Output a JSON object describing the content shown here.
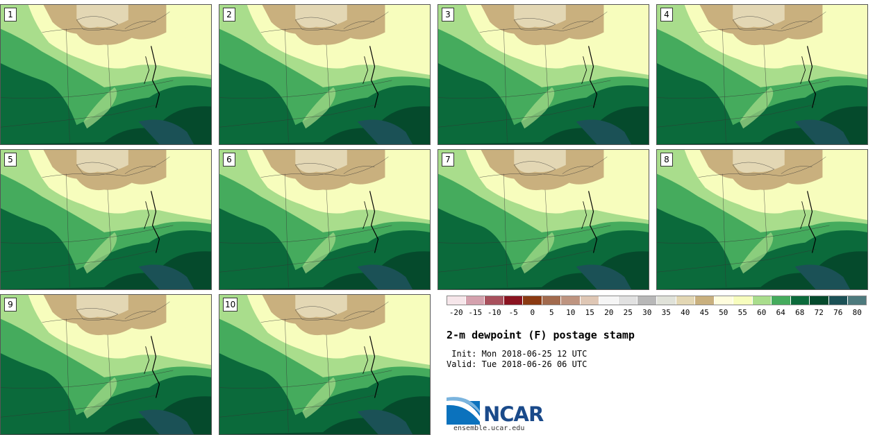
{
  "panels": [
    {
      "label": "1"
    },
    {
      "label": "2"
    },
    {
      "label": "3"
    },
    {
      "label": "4"
    },
    {
      "label": "5"
    },
    {
      "label": "6"
    },
    {
      "label": "7"
    },
    {
      "label": "8"
    },
    {
      "label": "9"
    },
    {
      "label": "10"
    }
  ],
  "colorbar": {
    "colors": [
      "#f6e6ea",
      "#d4a1ad",
      "#a8505c",
      "#8a1320",
      "#8b3a12",
      "#a26a4d",
      "#be9480",
      "#dfc7b5",
      "#f5f5f5",
      "#e1e1e1",
      "#b8b8b8",
      "#e0e2d9",
      "#e3d7b4",
      "#c9b07e",
      "#fffddd",
      "#f7fdbd",
      "#a9dd8c",
      "#45ab5d",
      "#0b6a3b",
      "#054a2c",
      "#1b5156",
      "#4d7a7d"
    ],
    "ticks": [
      "-20",
      "-15",
      "-10",
      "-5",
      "0",
      "5",
      "10",
      "15",
      "20",
      "25",
      "30",
      "35",
      "40",
      "45",
      "50",
      "55",
      "60",
      "64",
      "68",
      "72",
      "76",
      "80"
    ]
  },
  "title": "2-m dewpoint (F) postage stamp",
  "init_text": " Init: Mon 2018-06-25 12 UTC",
  "valid_text": "Valid: Tue 2018-06-26 06 UTC",
  "logo": {
    "name": "NCAR",
    "url": "ensemble.ucar.edu"
  }
}
